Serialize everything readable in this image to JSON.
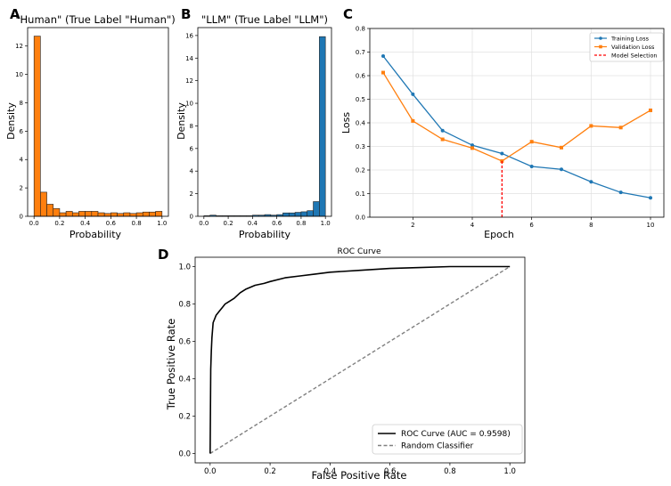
{
  "panels": {
    "A": {
      "letter": "A",
      "chart_data": {
        "type": "bar",
        "title": "\"Human\" (True Label \"Human\")",
        "xlabel": "Probability",
        "ylabel": "Density",
        "xlim": [
          -0.05,
          1.05
        ],
        "ylim": [
          0,
          13.3
        ],
        "bin_width": 0.05,
        "bin_starts": [
          0.0,
          0.05,
          0.1,
          0.15,
          0.2,
          0.25,
          0.3,
          0.35,
          0.4,
          0.45,
          0.5,
          0.55,
          0.6,
          0.65,
          0.7,
          0.75,
          0.8,
          0.85,
          0.9,
          0.95
        ],
        "values": [
          12.7,
          1.7,
          0.85,
          0.55,
          0.25,
          0.35,
          0.25,
          0.35,
          0.35,
          0.35,
          0.25,
          0.2,
          0.25,
          0.2,
          0.25,
          0.2,
          0.25,
          0.3,
          0.3,
          0.35
        ],
        "color": "#ff7f0e",
        "xticks": [
          "0.0",
          "0.2",
          "0.4",
          "0.6",
          "0.8",
          "1.0"
        ],
        "xtick_values": [
          0.0,
          0.2,
          0.4,
          0.6,
          0.8,
          1.0
        ],
        "yticks": [
          "0",
          "2",
          "4",
          "6",
          "8",
          "10",
          "12"
        ],
        "ytick_values": [
          0,
          2,
          4,
          6,
          8,
          10,
          12
        ]
      }
    },
    "B": {
      "letter": "B",
      "chart_data": {
        "type": "bar",
        "title": "\"LLM\" (True Label \"LLM\")",
        "xlabel": "Probability",
        "ylabel": "Density",
        "xlim": [
          -0.05,
          1.05
        ],
        "ylim": [
          0,
          16.7
        ],
        "bin_width": 0.05,
        "bin_starts": [
          0.0,
          0.05,
          0.1,
          0.15,
          0.2,
          0.25,
          0.3,
          0.35,
          0.4,
          0.45,
          0.5,
          0.55,
          0.6,
          0.65,
          0.7,
          0.75,
          0.8,
          0.85,
          0.9,
          0.95
        ],
        "values": [
          0.05,
          0.1,
          0.05,
          0.05,
          0.05,
          0.05,
          0.05,
          0.05,
          0.1,
          0.1,
          0.15,
          0.1,
          0.15,
          0.3,
          0.3,
          0.35,
          0.4,
          0.5,
          1.3,
          15.9
        ],
        "color": "#1f77b4",
        "xticks": [
          "0.0",
          "0.2",
          "0.4",
          "0.6",
          "0.8",
          "1.0"
        ],
        "xtick_values": [
          0.0,
          0.2,
          0.4,
          0.6,
          0.8,
          1.0
        ],
        "yticks": [
          "0",
          "2",
          "4",
          "6",
          "8",
          "10",
          "12",
          "14",
          "16"
        ],
        "ytick_values": [
          0,
          2,
          4,
          6,
          8,
          10,
          12,
          14,
          16
        ]
      }
    },
    "C": {
      "letter": "C",
      "chart_data": {
        "type": "line",
        "title": "",
        "xlabel": "Epoch",
        "ylabel": "Loss",
        "xlim": [
          0.55,
          10.45
        ],
        "ylim": [
          0.0,
          0.8
        ],
        "x": [
          1,
          2,
          3,
          4,
          5,
          6,
          7,
          8,
          9,
          10
        ],
        "series": [
          {
            "name": "Training Loss",
            "color": "#1f77b4",
            "marker": "circle",
            "values": [
              0.683,
              0.521,
              0.367,
              0.305,
              0.27,
              0.215,
              0.203,
              0.15,
              0.105,
              0.082
            ]
          },
          {
            "name": "Validation Loss",
            "color": "#ff7f0e",
            "marker": "square",
            "values": [
              0.613,
              0.408,
              0.33,
              0.293,
              0.238,
              0.32,
              0.295,
              0.387,
              0.38,
              0.453
            ]
          }
        ],
        "vline": {
          "name": "Model Selection",
          "x": 5,
          "color": "#ff0000",
          "from": 0,
          "to": 0.238
        },
        "grid": true,
        "legend": "top-right",
        "xticks": [
          "2",
          "4",
          "6",
          "8",
          "10"
        ],
        "xtick_values": [
          2,
          4,
          6,
          8,
          10
        ],
        "yticks": [
          "0.0",
          "0.1",
          "0.2",
          "0.3",
          "0.4",
          "0.5",
          "0.6",
          "0.7",
          "0.8"
        ],
        "ytick_values": [
          0.0,
          0.1,
          0.2,
          0.3,
          0.4,
          0.5,
          0.6,
          0.7,
          0.8
        ]
      }
    },
    "D": {
      "letter": "D",
      "chart_data": {
        "type": "line",
        "title": "ROC Curve",
        "xlabel": "False Positive Rate",
        "ylabel": "True Positive Rate",
        "xlim": [
          -0.05,
          1.05
        ],
        "ylim": [
          -0.05,
          1.05
        ],
        "series": [
          {
            "name": "ROC Curve (AUC = 0.9598)",
            "color": "#000000",
            "style": "solid",
            "x": [
              0.0,
              0.002,
              0.004,
              0.006,
              0.008,
              0.01,
              0.015,
              0.02,
              0.03,
              0.04,
              0.05,
              0.06,
              0.08,
              0.1,
              0.12,
              0.15,
              0.18,
              0.2,
              0.25,
              0.3,
              0.35,
              0.4,
              0.5,
              0.6,
              0.7,
              0.8,
              0.9,
              1.0
            ],
            "y": [
              0.0,
              0.45,
              0.55,
              0.62,
              0.66,
              0.7,
              0.72,
              0.74,
              0.76,
              0.78,
              0.8,
              0.81,
              0.83,
              0.86,
              0.88,
              0.9,
              0.91,
              0.92,
              0.94,
              0.95,
              0.96,
              0.97,
              0.98,
              0.99,
              0.995,
              1.0,
              1.0,
              1.0
            ]
          },
          {
            "name": "Random Classifier",
            "color": "#808080",
            "style": "dashed",
            "x": [
              0,
              1
            ],
            "y": [
              0,
              1
            ]
          }
        ],
        "legend": "bottom-right",
        "xticks": [
          "0.0",
          "0.2",
          "0.4",
          "0.6",
          "0.8",
          "1.0"
        ],
        "xtick_values": [
          0.0,
          0.2,
          0.4,
          0.6,
          0.8,
          1.0
        ],
        "yticks": [
          "0.0",
          "0.2",
          "0.4",
          "0.6",
          "0.8",
          "1.0"
        ],
        "ytick_values": [
          0.0,
          0.2,
          0.4,
          0.6,
          0.8,
          1.0
        ]
      }
    }
  }
}
